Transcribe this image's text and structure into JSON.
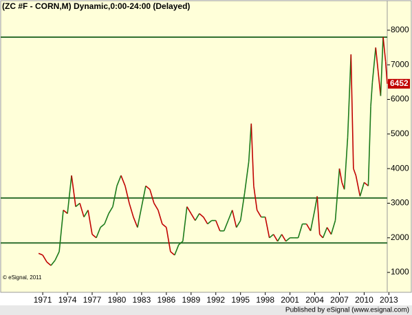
{
  "chart_data": {
    "type": "price",
    "title": "(ZC #F - CORN,M) Dynamic,0:00-24:00 (Delayed)",
    "copyright": "© eSignal, 2011",
    "footer": "Published by eSignal (www.esignal.com)",
    "background": "#ffffd9",
    "up_color": "#1a7a1a",
    "down_color": "#c00000",
    "level_color": "#2f6f2f",
    "levels": [
      7800,
      3150,
      1850
    ],
    "xlim": [
      1965.9,
      2012.8
    ],
    "ylim": [
      425,
      8853
    ],
    "xticks": [
      1971,
      1974,
      1977,
      1980,
      1983,
      1986,
      1989,
      1992,
      1995,
      1998,
      2001,
      2004,
      2007,
      2010,
      2013
    ],
    "yticks": [
      1000,
      2000,
      3000,
      4000,
      5000,
      6000,
      7000,
      8000
    ],
    "series": [
      {
        "name": "ZC #F",
        "x": [
          1970.5,
          1971,
          1971.5,
          1972,
          1972.5,
          1973,
          1973.5,
          1974,
          1974.5,
          1975,
          1975.5,
          1976,
          1976.5,
          1977,
          1977.5,
          1978,
          1978.5,
          1979,
          1979.5,
          1980,
          1980.5,
          1981,
          1981.5,
          1982,
          1982.5,
          1983,
          1983.5,
          1984,
          1984.5,
          1985,
          1985.5,
          1986,
          1986.5,
          1987,
          1987.5,
          1988,
          1988.5,
          1989,
          1989.5,
          1990,
          1990.5,
          1991,
          1991.5,
          1992,
          1992.5,
          1993,
          1993.5,
          1994,
          1994.5,
          1995,
          1995.5,
          1996,
          1996.3,
          1996.6,
          1997,
          1997.5,
          1998,
          1998.5,
          1999,
          1999.5,
          2000,
          2000.5,
          2001,
          2001.5,
          2002,
          2002.5,
          2003,
          2003.5,
          2004,
          2004.3,
          2004.6,
          2005,
          2005.5,
          2006,
          2006.5,
          2007,
          2007.3,
          2007.6,
          2008,
          2008.4,
          2008.7,
          2009,
          2009.5,
          2010,
          2010.5,
          2010.8,
          2011,
          2011.4,
          2011.7,
          2012,
          2012.3,
          2012.6,
          2012.8
        ],
        "values": [
          1550,
          1500,
          1300,
          1200,
          1350,
          1600,
          2800,
          2700,
          3800,
          2900,
          3000,
          2600,
          2800,
          2100,
          2000,
          2300,
          2400,
          2700,
          2900,
          3500,
          3800,
          3500,
          3000,
          2600,
          2300,
          2900,
          3500,
          3400,
          3000,
          2800,
          2400,
          2300,
          1600,
          1500,
          1800,
          1900,
          2900,
          2700,
          2500,
          2700,
          2600,
          2400,
          2500,
          2500,
          2200,
          2200,
          2500,
          2800,
          2300,
          2500,
          3300,
          4200,
          5300,
          3500,
          2800,
          2600,
          2600,
          2000,
          2100,
          1900,
          2100,
          1900,
          2000,
          2000,
          2000,
          2400,
          2400,
          2200,
          2800,
          3200,
          2100,
          2000,
          2300,
          2100,
          2500,
          4000,
          3600,
          3400,
          4900,
          7300,
          4000,
          3800,
          3200,
          3600,
          3500,
          5800,
          6500,
          7500,
          6800,
          6100,
          7800,
          7100,
          6452
        ]
      }
    ]
  }
}
